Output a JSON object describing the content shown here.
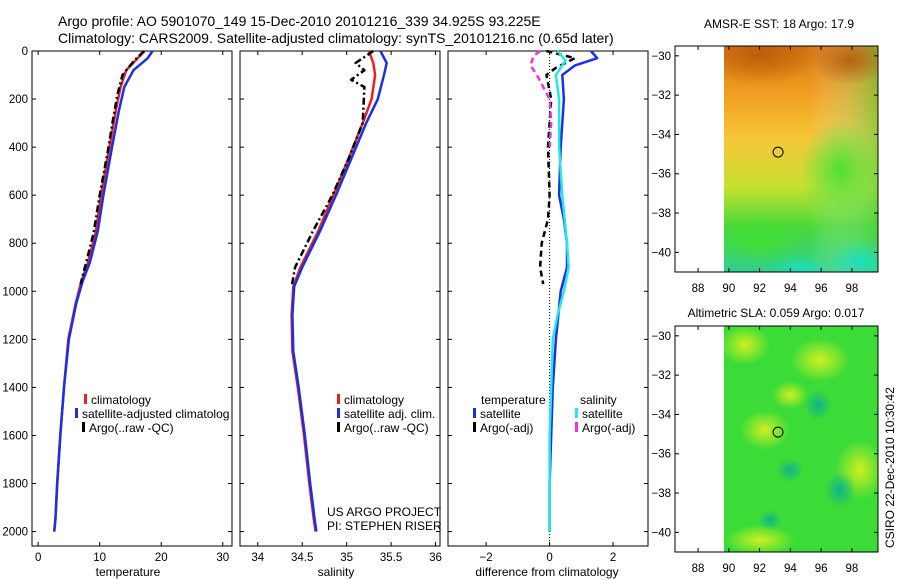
{
  "header": {
    "line1": "Argo profile: AO 5901070_149 15-Dec-2010 20101216_339 34.925S 93.225E",
    "line2": "Climatology: CARS2009. Satellite-adjusted climatology: synTS_20101216.nc (0.65d later)"
  },
  "credit": {
    "project": "US ARGO PROJECT",
    "pi": "PI: STEPHEN RISER",
    "stamp": "CSIRO 22-Dec-2010 10:30:42"
  },
  "colors": {
    "climatology": "#e8231f",
    "satellite": "#1a2fe6",
    "argo": "#000000",
    "satellite_sal": "#22e8e8",
    "argo_sal": "#ee33dd"
  },
  "chart_data": [
    {
      "type": "line",
      "xlabel": "temperature",
      "ylabel": "",
      "xlim": [
        -1,
        31.5
      ],
      "ylim": [
        2060,
        0
      ],
      "xticks": [
        0,
        10,
        20,
        30
      ],
      "yticks": [
        0,
        200,
        400,
        600,
        800,
        1000,
        1200,
        1400,
        1600,
        1800,
        2000
      ],
      "legend": {
        "position": "lower-right",
        "entries": [
          "climatology",
          "satellite-adjusted climatolog",
          "Argo(..raw -QC)"
        ]
      },
      "series": [
        {
          "name": "climatology",
          "color_key": "climatology",
          "style": "solid",
          "x": [
            17.3,
            16.2,
            14.3,
            13.4,
            12.6,
            11.6,
            10.2,
            9.4,
            8.1,
            7.0,
            6.1,
            4.9,
            4.2,
            3.6,
            3.1,
            2.8,
            2.6
          ],
          "y": [
            0,
            30,
            80,
            150,
            250,
            400,
            600,
            750,
            880,
            960,
            1050,
            1200,
            1400,
            1600,
            1800,
            1950,
            2000
          ]
        },
        {
          "name": "satellite-adjusted climatolog",
          "color_key": "satellite",
          "style": "solid",
          "x": [
            18.6,
            17.8,
            15.5,
            14.0,
            13.1,
            12.0,
            10.6,
            9.7,
            8.4,
            7.2,
            6.2,
            5.0,
            4.2,
            3.6,
            3.1,
            2.8,
            2.6
          ],
          "y": [
            0,
            30,
            80,
            150,
            250,
            400,
            600,
            750,
            880,
            960,
            1050,
            1200,
            1400,
            1600,
            1800,
            1950,
            2000
          ]
        },
        {
          "name": "Argo(..raw -QC)",
          "color_key": "argo",
          "style": "dashdot",
          "x": [
            17.2,
            15.6,
            13.7,
            12.9,
            12.2,
            11.3,
            10.0,
            9.0,
            7.6,
            6.9
          ],
          "y": [
            0,
            40,
            100,
            180,
            280,
            420,
            600,
            760,
            900,
            970
          ]
        }
      ]
    },
    {
      "type": "line",
      "xlabel": "salinity",
      "ylabel": "",
      "xlim": [
        33.8,
        36.05
      ],
      "ylim": [
        2060,
        0
      ],
      "xticks": [
        34,
        34.5,
        35,
        35.5,
        36
      ],
      "xtick_labels": [
        "34",
        "34.5",
        "35",
        "35.5",
        "36"
      ],
      "legend": {
        "position": "lower-right",
        "entries": [
          "climatology",
          "satellite adj. clim.",
          "Argo(..raw -QC)"
        ]
      },
      "series": [
        {
          "name": "climatology",
          "color_key": "climatology",
          "style": "solid",
          "x": [
            35.25,
            35.3,
            35.32,
            35.28,
            35.18,
            35.02,
            34.85,
            34.68,
            34.48,
            34.4,
            34.38,
            34.39,
            34.45,
            34.52,
            34.58,
            34.63,
            34.65
          ],
          "y": [
            0,
            50,
            100,
            200,
            300,
            450,
            600,
            750,
            900,
            980,
            1100,
            1250,
            1400,
            1600,
            1800,
            1950,
            2000
          ]
        },
        {
          "name": "satellite adj. clim.",
          "color_key": "satellite",
          "style": "solid",
          "x": [
            35.38,
            35.45,
            35.42,
            35.35,
            35.22,
            35.05,
            34.88,
            34.7,
            34.5,
            34.41,
            34.39,
            34.4,
            34.46,
            34.53,
            34.59,
            34.64,
            34.66
          ],
          "y": [
            0,
            50,
            100,
            200,
            300,
            450,
            600,
            750,
            900,
            980,
            1100,
            1250,
            1400,
            1600,
            1800,
            1950,
            2000
          ]
        },
        {
          "name": "Argo(..raw -QC)",
          "color_key": "argo",
          "style": "dashdot",
          "x": [
            35.3,
            35.1,
            35.2,
            35.05,
            35.2,
            35.18,
            35.02,
            34.84,
            34.62,
            34.42,
            34.38
          ],
          "y": [
            0,
            50,
            80,
            120,
            150,
            300,
            450,
            600,
            750,
            900,
            980
          ]
        }
      ]
    },
    {
      "type": "line",
      "xlabel": "difference from climatology",
      "ylabel": "",
      "xlim": [
        -3.2,
        3.1
      ],
      "ylim": [
        2060,
        0
      ],
      "xticks": [
        -2,
        0,
        2
      ],
      "xtick_labels": [
        "−2",
        "0",
        "2"
      ],
      "legend": {
        "position": "lower-center",
        "group_titles": [
          "temperature",
          "salinity"
        ],
        "entries": [
          "satellite",
          "Argo(-adj)",
          "satellite",
          "Argo(-adj)"
        ]
      },
      "series": [
        {
          "name": "temperature satellite",
          "color_key": "satellite",
          "style": "solid",
          "x": [
            1.3,
            1.5,
            0.8,
            0.4,
            0.45,
            0.35,
            0.3,
            0.45,
            0.55,
            0.55,
            0.35,
            0.2,
            0.1,
            0.05,
            0.0,
            0.0
          ],
          "y": [
            0,
            30,
            60,
            100,
            200,
            400,
            600,
            700,
            800,
            900,
            1000,
            1200,
            1400,
            1600,
            1800,
            2000
          ]
        },
        {
          "name": "temperature Argo(-adj)",
          "color_key": "argo",
          "style": "dashed",
          "x": [
            -0.1,
            0.8,
            0.2,
            -0.1,
            0.05,
            -0.05,
            0.0,
            -0.05,
            -0.25,
            -0.3,
            -0.2
          ],
          "y": [
            0,
            30,
            70,
            100,
            200,
            400,
            600,
            700,
            800,
            900,
            970
          ]
        },
        {
          "name": "salinity satellite",
          "color_key": "satellite_sal",
          "style": "solid",
          "x": [
            0.25,
            0.5,
            0.2,
            0.3,
            0.3,
            0.4,
            0.55,
            0.6,
            0.45,
            0.25,
            0.1,
            0.05,
            0.0,
            0.0
          ],
          "y": [
            0,
            40,
            100,
            200,
            400,
            600,
            800,
            900,
            1000,
            1100,
            1200,
            1400,
            1600,
            2000
          ]
        },
        {
          "name": "salinity Argo(-adj)",
          "color_key": "argo_sal",
          "style": "dashed",
          "x": [
            -0.3,
            -0.5,
            -0.6,
            -0.4,
            -0.2,
            0.0,
            0.05,
            0.0
          ],
          "y": [
            0,
            20,
            60,
            100,
            150,
            200,
            300,
            400
          ]
        }
      ]
    },
    {
      "type": "heatmap",
      "title_label": "AMSR-E SST: ",
      "sst": 18,
      "argo_label": " Argo: ",
      "argo_value": 17.9,
      "xlim": [
        86.5,
        99.7
      ],
      "ylim": [
        -41,
        -29.5
      ],
      "xticks": [
        88,
        90,
        92,
        94,
        96,
        98
      ],
      "yticks": [
        -30,
        -32,
        -34,
        -36,
        -38,
        -40
      ],
      "data_lon_start": 90,
      "colormap": "jet",
      "marker": {
        "lon": 93.2,
        "lat": -34.9
      }
    },
    {
      "type": "heatmap",
      "title_label": "Altimetric SLA: ",
      "sla": 0.059,
      "argo_label": " Argo: ",
      "argo_value": 0.017,
      "xlim": [
        86.5,
        99.7
      ],
      "ylim": [
        -41,
        -29.5
      ],
      "xticks": [
        88,
        90,
        92,
        94,
        96,
        98
      ],
      "yticks": [
        -30,
        -32,
        -34,
        -36,
        -38,
        -40
      ],
      "data_lon_start": 90,
      "colormap": "jet",
      "marker": {
        "lon": 93.2,
        "lat": -34.9
      }
    }
  ]
}
